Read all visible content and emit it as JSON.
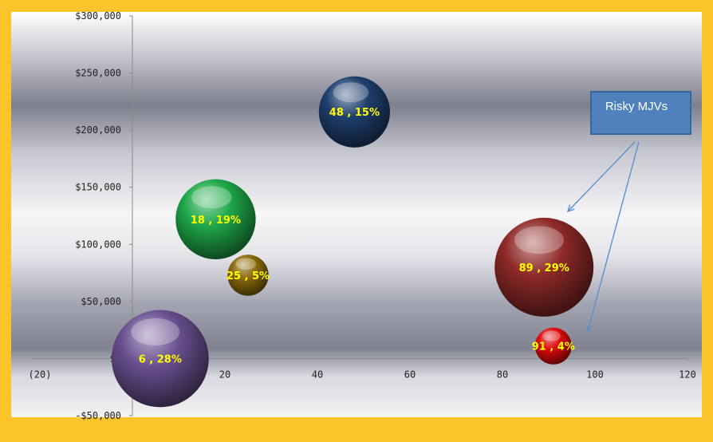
{
  "chart_data": {
    "type": "bubble",
    "title": "",
    "xlabel": "",
    "ylabel": "",
    "xlim": [
      -20,
      120
    ],
    "ylim": [
      -50000,
      300000
    ],
    "x_ticks": [
      {
        "value": -20,
        "label": "(20)"
      },
      {
        "value": 0,
        "label": "-"
      },
      {
        "value": 20,
        "label": "20"
      },
      {
        "value": 40,
        "label": "40"
      },
      {
        "value": 60,
        "label": "60"
      },
      {
        "value": 80,
        "label": "80"
      },
      {
        "value": 100,
        "label": "100"
      },
      {
        "value": 120,
        "label": "120"
      }
    ],
    "y_ticks": [
      {
        "value": 300000,
        "label": "$300,000"
      },
      {
        "value": 250000,
        "label": "$250,000"
      },
      {
        "value": 200000,
        "label": "$200,000"
      },
      {
        "value": 150000,
        "label": "$150,000"
      },
      {
        "value": 100000,
        "label": "$100,000"
      },
      {
        "value": 50000,
        "label": "$50,000"
      },
      {
        "value": 0,
        "label": "$0"
      },
      {
        "value": -50000,
        "label": "-$50,000"
      }
    ],
    "points": [
      {
        "x": 48,
        "y": 216000,
        "size": 15,
        "label": "48 , 15%",
        "color": "#1f3f6e"
      },
      {
        "x": 18,
        "y": 122000,
        "size": 19,
        "label": "18 , 19%",
        "color": "#1fa84a"
      },
      {
        "x": 25,
        "y": 73000,
        "size": 5,
        "label": "25 , 5%",
        "color": "#8a6a0a"
      },
      {
        "x": 6,
        "y": 0,
        "size": 28,
        "label": "6 , 28%",
        "color": "#6a5090"
      },
      {
        "x": 89,
        "y": 80000,
        "size": 29,
        "label": "89 , 29%",
        "color": "#8e2a28"
      },
      {
        "x": 91,
        "y": 11000,
        "size": 4,
        "label": "91 , 4%",
        "color": "#e00a0a"
      }
    ],
    "annotations": [
      {
        "text": "Risky MJVs",
        "points_to": [
          "89 , 29%",
          "91 , 4%"
        ]
      }
    ],
    "grid": false,
    "legend": "none"
  },
  "colors": {
    "frame": "#fbc42a",
    "callout_fill": "#4f81bd",
    "callout_border": "#38659c",
    "arrow": "#5b8fd0"
  }
}
